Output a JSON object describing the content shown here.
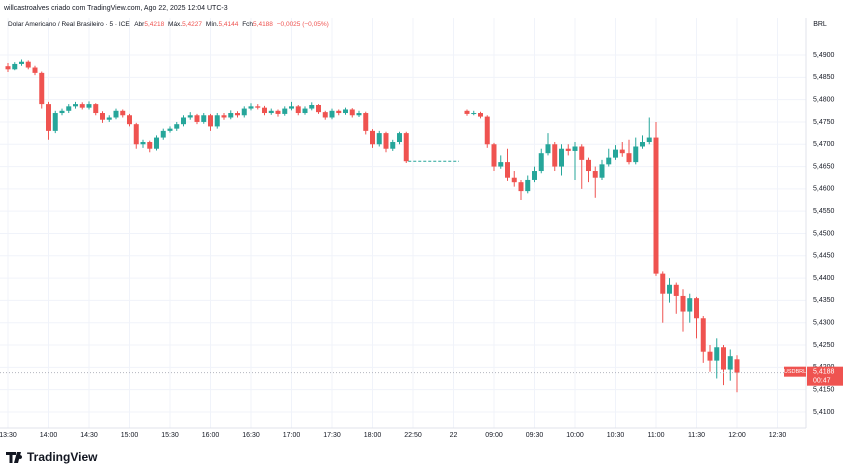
{
  "chart_data": {
    "type": "candlestick",
    "attribution": "willcastroalves criado com TradingView.com, Ago 22, 2025 12:04 UTC-3",
    "symbol": "Dolar Americano / Real Brasileiro · 5 · ICE",
    "ohlc_header": {
      "open_label": "Abr",
      "open": "5,4218",
      "high_label": "Máx.",
      "high": "5,4227",
      "low_label": "Mín.",
      "low": "5,4144",
      "close_label": "Fch",
      "close": "5,4188",
      "change": "−0,0025 (−0,05%)"
    },
    "currency": "BRL",
    "last_price": {
      "symbol": "USDBRL",
      "value": 5.4188,
      "label": "5,4188",
      "countdown": "00:47"
    },
    "brand": "TradingView",
    "up_color": "#26a69a",
    "down_color": "#ef5350",
    "grid": true,
    "ylim": [
      5.4064,
      5.4983
    ],
    "yticks": [
      {
        "value": 5.41,
        "label": "5,4100"
      },
      {
        "value": 5.415,
        "label": "5,4150"
      },
      {
        "value": 5.42,
        "label": "5,4200"
      },
      {
        "value": 5.425,
        "label": "5,4250"
      },
      {
        "value": 5.43,
        "label": "5,4300"
      },
      {
        "value": 5.435,
        "label": "5,4350"
      },
      {
        "value": 5.44,
        "label": "5,4400"
      },
      {
        "value": 5.445,
        "label": "5,4450"
      },
      {
        "value": 5.45,
        "label": "5,4500"
      },
      {
        "value": 5.455,
        "label": "5,4550"
      },
      {
        "value": 5.46,
        "label": "5,4600"
      },
      {
        "value": 5.465,
        "label": "5,4650"
      },
      {
        "value": 5.47,
        "label": "5,4700"
      },
      {
        "value": 5.475,
        "label": "5,4750"
      },
      {
        "value": 5.48,
        "label": "5,4800"
      },
      {
        "value": 5.485,
        "label": "5,4850"
      },
      {
        "value": 5.49,
        "label": "5,4900"
      }
    ],
    "categories": [
      "13:30",
      null,
      null,
      null,
      null,
      null,
      "14:00",
      null,
      null,
      null,
      null,
      null,
      "14:30",
      null,
      null,
      null,
      null,
      null,
      "15:00",
      null,
      null,
      null,
      null,
      null,
      "15:30",
      null,
      null,
      null,
      null,
      null,
      "16:00",
      null,
      null,
      null,
      null,
      null,
      "16:30",
      null,
      null,
      null,
      null,
      null,
      "17:00",
      null,
      null,
      null,
      null,
      null,
      "17:30",
      null,
      null,
      null,
      null,
      null,
      "18:00",
      null,
      null,
      null,
      null,
      null,
      "22:50",
      null,
      null,
      null,
      null,
      null,
      "22",
      null,
      null,
      null,
      null,
      null,
      "09:00",
      null,
      null,
      null,
      null,
      null,
      "09:30",
      null,
      null,
      null,
      null,
      null,
      "10:00",
      null,
      null,
      null,
      null,
      null,
      "10:30",
      null,
      null,
      null,
      null,
      null,
      "11:00",
      null,
      null,
      null,
      null,
      null,
      "11:30",
      null,
      null,
      null,
      null,
      null,
      "12:00",
      null,
      null,
      null,
      null,
      null,
      "12:30"
    ],
    "candles": [
      [
        5.4875,
        5.4882,
        5.4862,
        5.4868
      ],
      [
        5.4868,
        5.4884,
        5.4866,
        5.488
      ],
      [
        5.488,
        5.489,
        5.4876,
        5.4885
      ],
      [
        5.4885,
        5.4888,
        5.4868,
        5.4872
      ],
      [
        5.4872,
        5.4876,
        5.4855,
        5.486
      ],
      [
        5.486,
        5.4863,
        5.478,
        5.479
      ],
      [
        5.479,
        5.4795,
        5.471,
        5.473
      ],
      [
        5.473,
        5.4775,
        5.4725,
        5.477
      ],
      [
        5.477,
        5.478,
        5.4765,
        5.4775
      ],
      [
        5.4775,
        5.479,
        5.477,
        5.4785
      ],
      [
        5.4785,
        5.4795,
        5.478,
        5.479
      ],
      [
        5.479,
        5.4794,
        5.4778,
        5.4782
      ],
      [
        5.4782,
        5.4796,
        5.4778,
        5.479
      ],
      [
        5.479,
        5.4792,
        5.4765,
        5.477
      ],
      [
        5.477,
        5.4774,
        5.4748,
        5.4755
      ],
      [
        5.4755,
        5.4765,
        5.475,
        5.476
      ],
      [
        5.476,
        5.478,
        5.4756,
        5.4775
      ],
      [
        5.4775,
        5.4778,
        5.476,
        5.4765
      ],
      [
        5.4765,
        5.4768,
        5.474,
        5.4745
      ],
      [
        5.4745,
        5.4748,
        5.469,
        5.47
      ],
      [
        5.47,
        5.471,
        5.4692,
        5.4705
      ],
      [
        5.4705,
        5.4708,
        5.4682,
        5.469
      ],
      [
        5.469,
        5.472,
        5.4686,
        5.4715
      ],
      [
        5.4715,
        5.4735,
        5.471,
        5.473
      ],
      [
        5.473,
        5.474,
        5.4726,
        5.4735
      ],
      [
        5.4735,
        5.475,
        5.473,
        5.4745
      ],
      [
        5.4745,
        5.4765,
        5.474,
        5.476
      ],
      [
        5.476,
        5.4772,
        5.4755,
        5.4765
      ],
      [
        5.4765,
        5.4768,
        5.4745,
        5.475
      ],
      [
        5.475,
        5.477,
        5.4746,
        5.4765
      ],
      [
        5.4765,
        5.4768,
        5.473,
        5.474
      ],
      [
        5.474,
        5.477,
        5.4735,
        5.4765
      ],
      [
        5.4765,
        5.477,
        5.4755,
        5.476
      ],
      [
        5.476,
        5.4776,
        5.4756,
        5.477
      ],
      [
        5.477,
        5.4774,
        5.476,
        5.4765
      ],
      [
        5.4765,
        5.4785,
        5.476,
        5.478
      ],
      [
        5.478,
        5.4792,
        5.4776,
        5.4785
      ],
      [
        5.4785,
        5.479,
        5.4778,
        5.4782
      ],
      [
        5.4782,
        5.4786,
        5.4765,
        5.477
      ],
      [
        5.477,
        5.478,
        5.4766,
        5.4775
      ],
      [
        5.4775,
        5.4778,
        5.4762,
        5.4768
      ],
      [
        5.4768,
        5.4785,
        5.4764,
        5.478
      ],
      [
        5.478,
        5.4795,
        5.4776,
        5.4785
      ],
      [
        5.4785,
        5.4788,
        5.4765,
        5.477
      ],
      [
        5.477,
        5.4785,
        5.4766,
        5.478
      ],
      [
        5.478,
        5.4794,
        5.4776,
        5.4788
      ],
      [
        5.4788,
        5.479,
        5.4768,
        5.4772
      ],
      [
        5.4772,
        5.4775,
        5.4755,
        5.476
      ],
      [
        5.476,
        5.478,
        5.4756,
        5.4775
      ],
      [
        5.4775,
        5.4778,
        5.4765,
        5.477
      ],
      [
        5.477,
        5.4782,
        5.4766,
        5.4778
      ],
      [
        5.4778,
        5.4781,
        5.476,
        5.4765
      ],
      [
        5.4765,
        5.4775,
        5.4761,
        5.477
      ],
      [
        5.477,
        5.4773,
        5.4722,
        5.473
      ],
      [
        5.473,
        5.4734,
        5.4692,
        5.47
      ],
      [
        5.47,
        5.473,
        5.4695,
        5.4725
      ],
      [
        5.4725,
        5.4728,
        5.4682,
        5.469
      ],
      [
        5.469,
        5.471,
        5.4685,
        5.4705
      ],
      [
        5.4705,
        5.4728,
        5.47,
        5.4725
      ],
      [
        5.4725,
        5.4728,
        5.4658,
        5.4662
      ],
      null,
      null,
      null,
      null,
      null,
      null,
      null,
      null,
      [
        5.4775,
        5.4778,
        5.4764,
        5.4768
      ],
      [
        5.4768,
        5.4775,
        5.4765,
        5.477
      ],
      [
        5.477,
        5.4773,
        5.4758,
        5.4762
      ],
      [
        5.4762,
        5.4765,
        5.4692,
        5.47
      ],
      [
        5.47,
        5.4703,
        5.464,
        5.465
      ],
      [
        5.465,
        5.4675,
        5.4645,
        5.466
      ],
      [
        5.466,
        5.469,
        5.4618,
        5.4625
      ],
      [
        5.4625,
        5.464,
        5.4605,
        5.4615
      ],
      [
        5.4615,
        5.462,
        5.4575,
        5.4595
      ],
      [
        5.4595,
        5.463,
        5.459,
        5.462
      ],
      [
        5.462,
        5.465,
        5.4615,
        5.464
      ],
      [
        5.464,
        5.469,
        5.4635,
        5.468
      ],
      [
        5.468,
        5.4725,
        5.4675,
        5.47
      ],
      [
        5.47,
        5.4705,
        5.464,
        5.465
      ],
      [
        5.465,
        5.47,
        5.463,
        5.469
      ],
      [
        5.469,
        5.47,
        5.4675,
        5.4685
      ],
      [
        5.4685,
        5.4705,
        5.462,
        5.4695
      ],
      [
        5.4695,
        5.47,
        5.46,
        5.4665
      ],
      [
        5.4665,
        5.467,
        5.4615,
        5.464
      ],
      [
        5.464,
        5.465,
        5.458,
        5.4625
      ],
      [
        5.4625,
        5.4665,
        5.462,
        5.4655
      ],
      [
        5.4655,
        5.469,
        5.465,
        5.467
      ],
      [
        5.467,
        5.4698,
        5.4665,
        5.4688
      ],
      [
        5.4688,
        5.4705,
        5.4672,
        5.468
      ],
      [
        5.468,
        5.471,
        5.4655,
        5.466
      ],
      [
        5.466,
        5.4715,
        5.4655,
        5.4695
      ],
      [
        5.4695,
        5.472,
        5.469,
        5.4705
      ],
      [
        5.4705,
        5.476,
        5.47,
        5.4715
      ],
      [
        5.4715,
        5.475,
        5.4405,
        5.441
      ],
      [
        5.441,
        5.4415,
        5.43,
        5.4365
      ],
      [
        5.4365,
        5.44,
        5.4345,
        5.4385
      ],
      [
        5.4385,
        5.439,
        5.432,
        5.436
      ],
      [
        5.436,
        5.4375,
        5.428,
        5.4325
      ],
      [
        5.4325,
        5.4365,
        5.43,
        5.4355
      ],
      [
        5.4355,
        5.4358,
        5.4265,
        5.431
      ],
      [
        5.431,
        5.4315,
        5.421,
        5.4235
      ],
      [
        5.4235,
        5.425,
        5.419,
        5.4215
      ],
      [
        5.4215,
        5.4265,
        5.4175,
        5.4245
      ],
      [
        5.4245,
        5.425,
        5.416,
        5.4195
      ],
      [
        5.4195,
        5.424,
        5.417,
        5.4225
      ],
      [
        5.4218,
        5.4227,
        5.4144,
        5.4188
      ],
      null,
      null,
      null,
      null,
      null,
      null
    ]
  }
}
